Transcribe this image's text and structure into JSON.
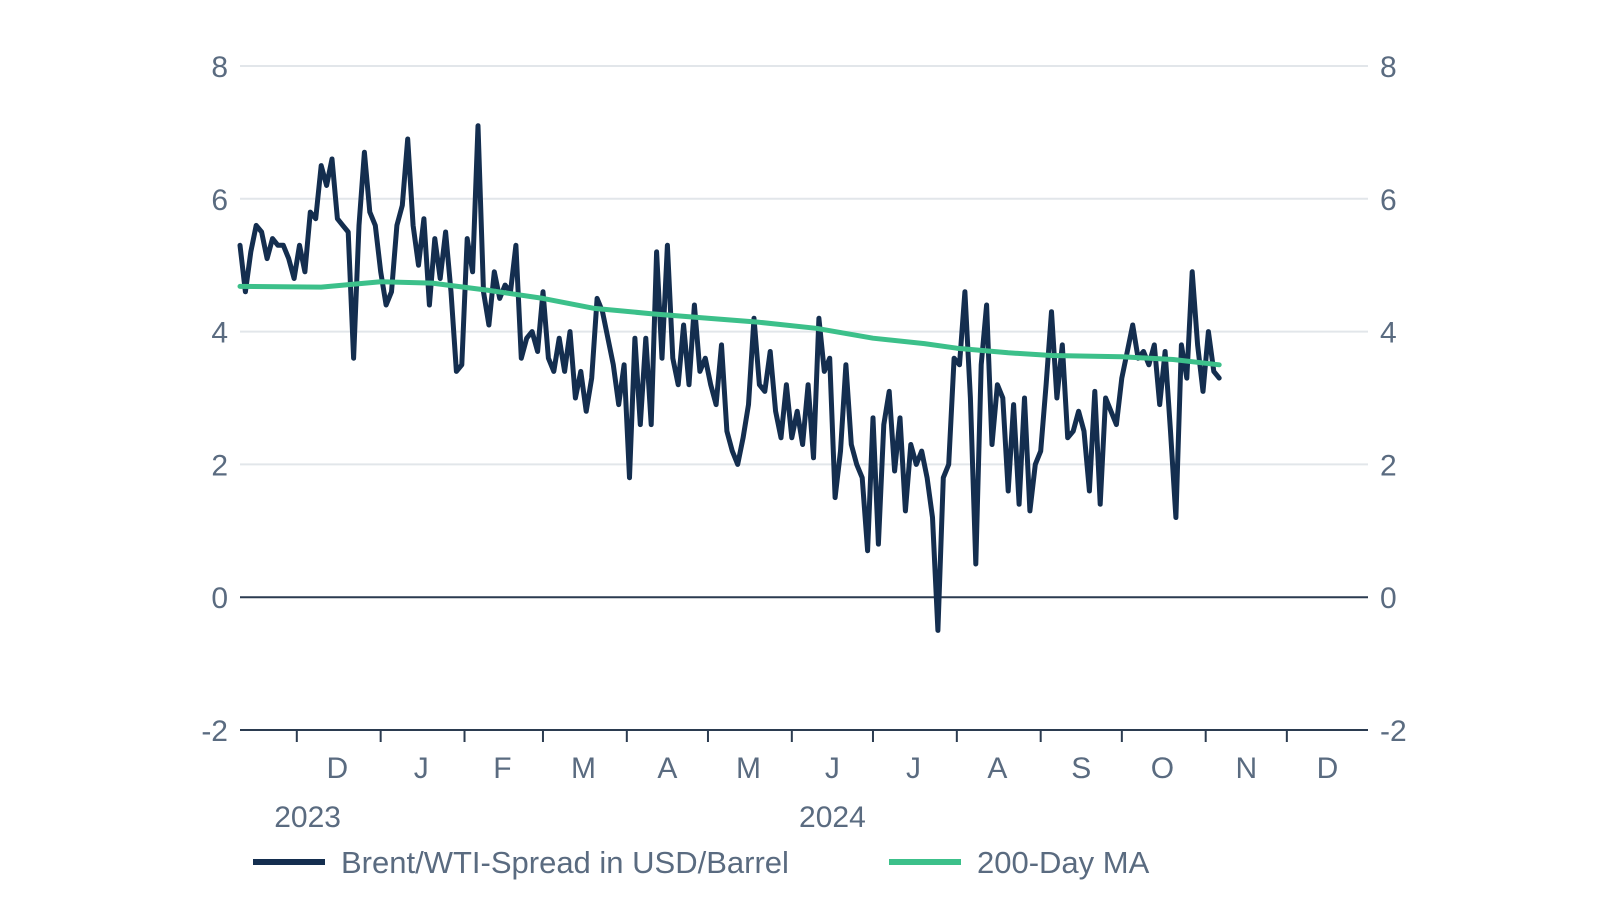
{
  "chart_data": {
    "type": "line",
    "colors": {
      "spread": "#142e4f",
      "ma": "#3cc08a",
      "grid": "#e2e6ea",
      "axis": "#2b3b50",
      "text": "#5a6b80"
    },
    "ylim": [
      -2,
      8
    ],
    "yticks": [
      -2,
      0,
      2,
      4,
      6,
      8
    ],
    "x_axis": {
      "start": "2023-11-10",
      "end": "2024-12-31",
      "month_labels": [
        {
          "label": "D",
          "date": "2023-12-16"
        },
        {
          "label": "J",
          "date": "2024-01-16"
        },
        {
          "label": "F",
          "date": "2024-02-15"
        },
        {
          "label": "M",
          "date": "2024-03-16"
        },
        {
          "label": "A",
          "date": "2024-04-16"
        },
        {
          "label": "M",
          "date": "2024-05-16"
        },
        {
          "label": "J",
          "date": "2024-06-16"
        },
        {
          "label": "J",
          "date": "2024-07-16"
        },
        {
          "label": "A",
          "date": "2024-08-16"
        },
        {
          "label": "S",
          "date": "2024-09-16"
        },
        {
          "label": "O",
          "date": "2024-10-16"
        },
        {
          "label": "N",
          "date": "2024-11-16"
        },
        {
          "label": "D",
          "date": "2024-12-16"
        }
      ],
      "month_ticks": [
        "2023-12-01",
        "2024-01-01",
        "2024-02-01",
        "2024-03-01",
        "2024-04-01",
        "2024-05-01",
        "2024-06-01",
        "2024-07-01",
        "2024-08-01",
        "2024-09-01",
        "2024-10-01",
        "2024-11-01",
        "2024-12-01"
      ],
      "year_labels": [
        {
          "label": "2023",
          "date": "2023-12-05"
        },
        {
          "label": "2024",
          "date": "2024-06-16"
        }
      ]
    },
    "series": [
      {
        "name": "Brent/WTI-Spread in USD/Barrel",
        "points": [
          [
            "2023-11-10",
            5.3
          ],
          [
            "2023-11-12",
            4.6
          ],
          [
            "2023-11-14",
            5.2
          ],
          [
            "2023-11-16",
            5.6
          ],
          [
            "2023-11-18",
            5.5
          ],
          [
            "2023-11-20",
            5.1
          ],
          [
            "2023-11-22",
            5.4
          ],
          [
            "2023-11-24",
            5.3
          ],
          [
            "2023-11-26",
            5.3
          ],
          [
            "2023-11-28",
            5.1
          ],
          [
            "2023-11-30",
            4.8
          ],
          [
            "2023-12-02",
            5.3
          ],
          [
            "2023-12-04",
            4.9
          ],
          [
            "2023-12-06",
            5.8
          ],
          [
            "2023-12-08",
            5.7
          ],
          [
            "2023-12-10",
            6.5
          ],
          [
            "2023-12-12",
            6.2
          ],
          [
            "2023-12-14",
            6.6
          ],
          [
            "2023-12-16",
            5.7
          ],
          [
            "2023-12-18",
            5.6
          ],
          [
            "2023-12-20",
            5.5
          ],
          [
            "2023-12-22",
            3.6
          ],
          [
            "2023-12-24",
            5.6
          ],
          [
            "2023-12-26",
            6.7
          ],
          [
            "2023-12-28",
            5.8
          ],
          [
            "2023-12-30",
            5.6
          ],
          [
            "2024-01-01",
            4.9
          ],
          [
            "2024-01-03",
            4.4
          ],
          [
            "2024-01-05",
            4.6
          ],
          [
            "2024-01-07",
            5.6
          ],
          [
            "2024-01-09",
            5.9
          ],
          [
            "2024-01-11",
            6.9
          ],
          [
            "2024-01-13",
            5.6
          ],
          [
            "2024-01-15",
            5.0
          ],
          [
            "2024-01-17",
            5.7
          ],
          [
            "2024-01-19",
            4.4
          ],
          [
            "2024-01-21",
            5.4
          ],
          [
            "2024-01-23",
            4.8
          ],
          [
            "2024-01-25",
            5.5
          ],
          [
            "2024-01-27",
            4.6
          ],
          [
            "2024-01-29",
            3.4
          ],
          [
            "2024-01-31",
            3.5
          ],
          [
            "2024-02-02",
            5.4
          ],
          [
            "2024-02-04",
            4.9
          ],
          [
            "2024-02-06",
            7.1
          ],
          [
            "2024-02-08",
            4.6
          ],
          [
            "2024-02-10",
            4.1
          ],
          [
            "2024-02-12",
            4.9
          ],
          [
            "2024-02-14",
            4.5
          ],
          [
            "2024-02-16",
            4.7
          ],
          [
            "2024-02-18",
            4.6
          ],
          [
            "2024-02-20",
            5.3
          ],
          [
            "2024-02-22",
            3.6
          ],
          [
            "2024-02-24",
            3.9
          ],
          [
            "2024-02-26",
            4.0
          ],
          [
            "2024-02-28",
            3.7
          ],
          [
            "2024-03-01",
            4.6
          ],
          [
            "2024-03-03",
            3.6
          ],
          [
            "2024-03-05",
            3.4
          ],
          [
            "2024-03-07",
            3.9
          ],
          [
            "2024-03-09",
            3.4
          ],
          [
            "2024-03-11",
            4.0
          ],
          [
            "2024-03-13",
            3.0
          ],
          [
            "2024-03-15",
            3.4
          ],
          [
            "2024-03-17",
            2.8
          ],
          [
            "2024-03-19",
            3.3
          ],
          [
            "2024-03-21",
            4.5
          ],
          [
            "2024-03-23",
            4.3
          ],
          [
            "2024-03-25",
            3.9
          ],
          [
            "2024-03-27",
            3.5
          ],
          [
            "2024-03-29",
            2.9
          ],
          [
            "2024-03-31",
            3.5
          ],
          [
            "2024-04-02",
            1.8
          ],
          [
            "2024-04-04",
            3.9
          ],
          [
            "2024-04-06",
            2.6
          ],
          [
            "2024-04-08",
            3.9
          ],
          [
            "2024-04-10",
            2.6
          ],
          [
            "2024-04-12",
            5.2
          ],
          [
            "2024-04-14",
            3.6
          ],
          [
            "2024-04-16",
            5.3
          ],
          [
            "2024-04-18",
            3.6
          ],
          [
            "2024-04-20",
            3.2
          ],
          [
            "2024-04-22",
            4.1
          ],
          [
            "2024-04-24",
            3.2
          ],
          [
            "2024-04-26",
            4.4
          ],
          [
            "2024-04-28",
            3.4
          ],
          [
            "2024-04-30",
            3.6
          ],
          [
            "2024-05-02",
            3.2
          ],
          [
            "2024-05-04",
            2.9
          ],
          [
            "2024-05-06",
            3.8
          ],
          [
            "2024-05-08",
            2.5
          ],
          [
            "2024-05-10",
            2.2
          ],
          [
            "2024-05-12",
            2.0
          ],
          [
            "2024-05-14",
            2.4
          ],
          [
            "2024-05-16",
            2.9
          ],
          [
            "2024-05-18",
            4.2
          ],
          [
            "2024-05-20",
            3.2
          ],
          [
            "2024-05-22",
            3.1
          ],
          [
            "2024-05-24",
            3.7
          ],
          [
            "2024-05-26",
            2.8
          ],
          [
            "2024-05-28",
            2.4
          ],
          [
            "2024-05-30",
            3.2
          ],
          [
            "2024-06-01",
            2.4
          ],
          [
            "2024-06-03",
            2.8
          ],
          [
            "2024-06-05",
            2.3
          ],
          [
            "2024-06-07",
            3.2
          ],
          [
            "2024-06-09",
            2.1
          ],
          [
            "2024-06-11",
            4.2
          ],
          [
            "2024-06-13",
            3.4
          ],
          [
            "2024-06-15",
            3.6
          ],
          [
            "2024-06-17",
            1.5
          ],
          [
            "2024-06-19",
            2.2
          ],
          [
            "2024-06-21",
            3.5
          ],
          [
            "2024-06-23",
            2.3
          ],
          [
            "2024-06-25",
            2.0
          ],
          [
            "2024-06-27",
            1.8
          ],
          [
            "2024-06-29",
            0.7
          ],
          [
            "2024-07-01",
            2.7
          ],
          [
            "2024-07-03",
            0.8
          ],
          [
            "2024-07-05",
            2.6
          ],
          [
            "2024-07-07",
            3.1
          ],
          [
            "2024-07-09",
            1.9
          ],
          [
            "2024-07-11",
            2.7
          ],
          [
            "2024-07-13",
            1.3
          ],
          [
            "2024-07-15",
            2.3
          ],
          [
            "2024-07-17",
            2.0
          ],
          [
            "2024-07-19",
            2.2
          ],
          [
            "2024-07-21",
            1.8
          ],
          [
            "2024-07-23",
            1.2
          ],
          [
            "2024-07-25",
            -0.5
          ],
          [
            "2024-07-27",
            1.8
          ],
          [
            "2024-07-29",
            2.0
          ],
          [
            "2024-07-31",
            3.6
          ],
          [
            "2024-08-02",
            3.5
          ],
          [
            "2024-08-04",
            4.6
          ],
          [
            "2024-08-06",
            3.0
          ],
          [
            "2024-08-08",
            0.5
          ],
          [
            "2024-08-10",
            3.5
          ],
          [
            "2024-08-12",
            4.4
          ],
          [
            "2024-08-14",
            2.3
          ],
          [
            "2024-08-16",
            3.2
          ],
          [
            "2024-08-18",
            3.0
          ],
          [
            "2024-08-20",
            1.6
          ],
          [
            "2024-08-22",
            2.9
          ],
          [
            "2024-08-24",
            1.4
          ],
          [
            "2024-08-26",
            3.0
          ],
          [
            "2024-08-28",
            1.3
          ],
          [
            "2024-08-30",
            2.0
          ],
          [
            "2024-09-01",
            2.2
          ],
          [
            "2024-09-03",
            3.2
          ],
          [
            "2024-09-05",
            4.3
          ],
          [
            "2024-09-07",
            3.0
          ],
          [
            "2024-09-09",
            3.8
          ],
          [
            "2024-09-11",
            2.4
          ],
          [
            "2024-09-13",
            2.5
          ],
          [
            "2024-09-15",
            2.8
          ],
          [
            "2024-09-17",
            2.5
          ],
          [
            "2024-09-19",
            1.6
          ],
          [
            "2024-09-21",
            3.1
          ],
          [
            "2024-09-23",
            1.4
          ],
          [
            "2024-09-25",
            3.0
          ],
          [
            "2024-09-27",
            2.8
          ],
          [
            "2024-09-29",
            2.6
          ],
          [
            "2024-10-01",
            3.3
          ],
          [
            "2024-10-03",
            3.7
          ],
          [
            "2024-10-05",
            4.1
          ],
          [
            "2024-10-07",
            3.6
          ],
          [
            "2024-10-09",
            3.7
          ],
          [
            "2024-10-11",
            3.5
          ],
          [
            "2024-10-13",
            3.8
          ],
          [
            "2024-10-15",
            2.9
          ],
          [
            "2024-10-17",
            3.7
          ],
          [
            "2024-10-19",
            2.5
          ],
          [
            "2024-10-21",
            1.2
          ],
          [
            "2024-10-23",
            3.8
          ],
          [
            "2024-10-25",
            3.3
          ],
          [
            "2024-10-27",
            4.9
          ],
          [
            "2024-10-29",
            3.8
          ],
          [
            "2024-10-31",
            3.1
          ],
          [
            "2024-11-02",
            4.0
          ],
          [
            "2024-11-04",
            3.4
          ],
          [
            "2024-11-06",
            3.3
          ]
        ]
      },
      {
        "name": "200-Day MA",
        "points": [
          [
            "2023-11-10",
            4.68
          ],
          [
            "2023-12-10",
            4.67
          ],
          [
            "2024-01-01",
            4.75
          ],
          [
            "2024-01-20",
            4.73
          ],
          [
            "2024-02-10",
            4.62
          ],
          [
            "2024-03-01",
            4.5
          ],
          [
            "2024-03-20",
            4.35
          ],
          [
            "2024-04-10",
            4.27
          ],
          [
            "2024-05-01",
            4.2
          ],
          [
            "2024-05-20",
            4.14
          ],
          [
            "2024-06-10",
            4.05
          ],
          [
            "2024-07-01",
            3.9
          ],
          [
            "2024-07-20",
            3.82
          ],
          [
            "2024-08-01",
            3.75
          ],
          [
            "2024-08-20",
            3.68
          ],
          [
            "2024-09-05",
            3.64
          ],
          [
            "2024-10-01",
            3.62
          ],
          [
            "2024-10-20",
            3.58
          ],
          [
            "2024-11-06",
            3.5
          ]
        ]
      }
    ]
  }
}
